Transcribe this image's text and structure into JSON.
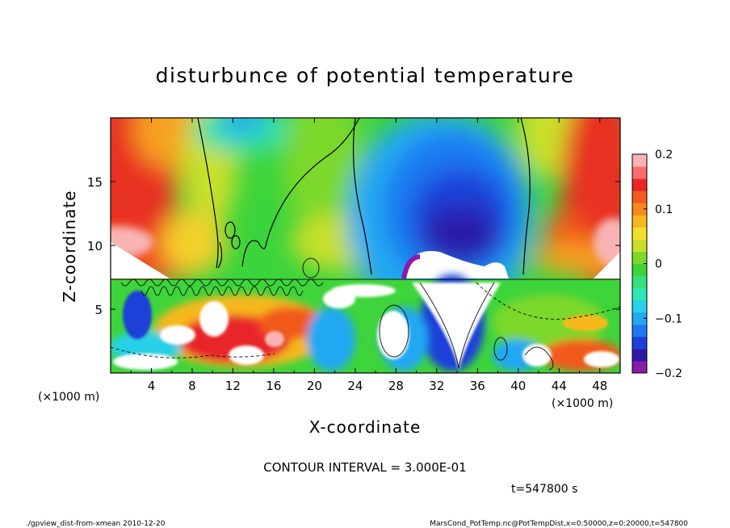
{
  "chart_data": {
    "type": "heatmap",
    "title": "disturbunce of potential temperature",
    "xlabel": "X-coordinate",
    "ylabel": "Z-coordinate",
    "x_unit": "(×1000 m)",
    "z_unit": "(×1000 m)",
    "xlim": [
      0,
      50
    ],
    "zlim": [
      0,
      20
    ],
    "x_ticks": [
      "4",
      "8",
      "12",
      "16",
      "20",
      "24",
      "28",
      "32",
      "36",
      "40",
      "44",
      "48"
    ],
    "z_ticks": [
      "5",
      "10",
      "15"
    ],
    "colorbar": {
      "range": [
        -0.2,
        0.2
      ],
      "ticks": [
        "0.2",
        "0.1",
        "0",
        "−0.1",
        "−0.2"
      ],
      "colors": [
        "#8a1aa8",
        "#2b1aa8",
        "#1d3fd8",
        "#1f78f0",
        "#24a8f2",
        "#27d0e6",
        "#2fe6b6",
        "#36e07a",
        "#3ed43b",
        "#7cd82a",
        "#c8e02a",
        "#f2e02a",
        "#f6b81e",
        "#f68a1e",
        "#f25a1e",
        "#e8262a",
        "#f86e6e",
        "#f8b4b4"
      ]
    },
    "contour_interval_text": "CONTOUR INTERVAL = 3.000E-01",
    "time_text": "t=547800 s"
  },
  "footer": {
    "left": "./gpview_dist-from-xmean   2010-12-20",
    "right": "MarsCond_PotTemp.nc@PotTempDist,x=0:50000,z=0:20000,t=547800"
  }
}
